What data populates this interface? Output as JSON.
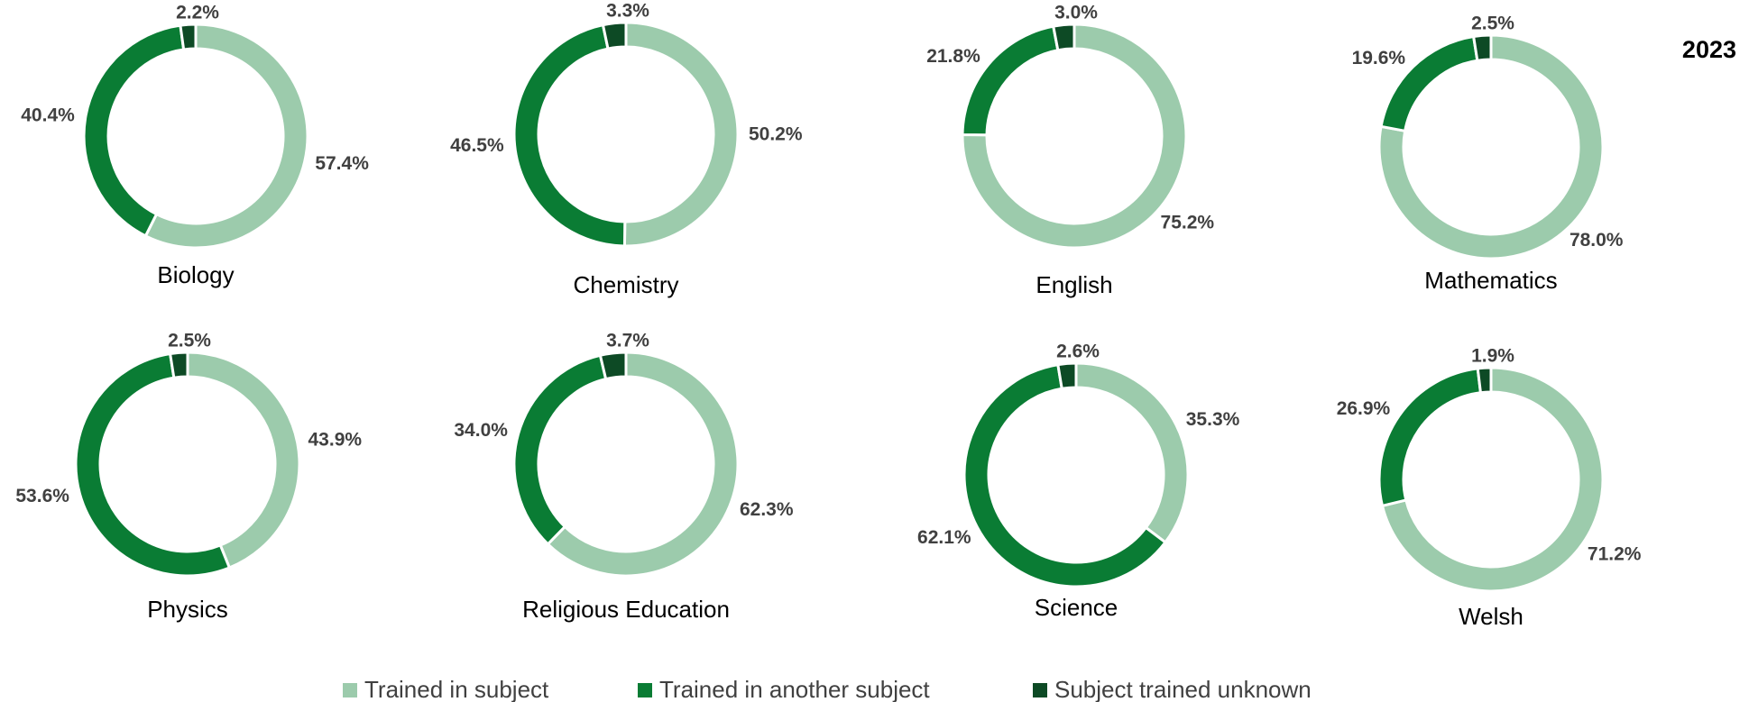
{
  "title": "2023",
  "legend": {
    "labels": [
      "Trained in subject",
      "Trained in another subject",
      "Subject trained unknown"
    ],
    "colors": [
      "#9ccbac",
      "#0a7c34",
      "#0d4a25"
    ]
  },
  "chart_data": [
    {
      "type": "donut",
      "title": "Biology",
      "values": [
        57.4,
        40.4,
        2.2
      ],
      "value_labels": [
        "57.4%",
        "40.4%",
        "2.2%"
      ]
    },
    {
      "type": "donut",
      "title": "Chemistry",
      "values": [
        50.2,
        46.5,
        3.3
      ],
      "value_labels": [
        "50.2%",
        "46.5%",
        "3.3%"
      ]
    },
    {
      "type": "donut",
      "title": "English",
      "values": [
        75.2,
        21.8,
        3.0
      ],
      "value_labels": [
        "75.2%",
        "21.8%",
        "3.0%"
      ]
    },
    {
      "type": "donut",
      "title": "Mathematics",
      "values": [
        78.0,
        19.6,
        2.5
      ],
      "value_labels": [
        "78.0%",
        "19.6%",
        "2.5%"
      ]
    },
    {
      "type": "donut",
      "title": "Physics",
      "values": [
        43.9,
        53.6,
        2.5
      ],
      "value_labels": [
        "43.9%",
        "53.6%",
        "2.5%"
      ]
    },
    {
      "type": "donut",
      "title": "Religious Education",
      "values": [
        62.3,
        34.0,
        3.7
      ],
      "value_labels": [
        "62.3%",
        "34.0%",
        "3.7%"
      ]
    },
    {
      "type": "donut",
      "title": "Science",
      "values": [
        35.3,
        62.1,
        2.6
      ],
      "value_labels": [
        "35.3%",
        "62.1%",
        "2.6%"
      ]
    },
    {
      "type": "donut",
      "title": "Welsh",
      "values": [
        71.2,
        26.9,
        1.9
      ],
      "value_labels": [
        "71.2%",
        "26.9%",
        "1.9%"
      ]
    }
  ]
}
